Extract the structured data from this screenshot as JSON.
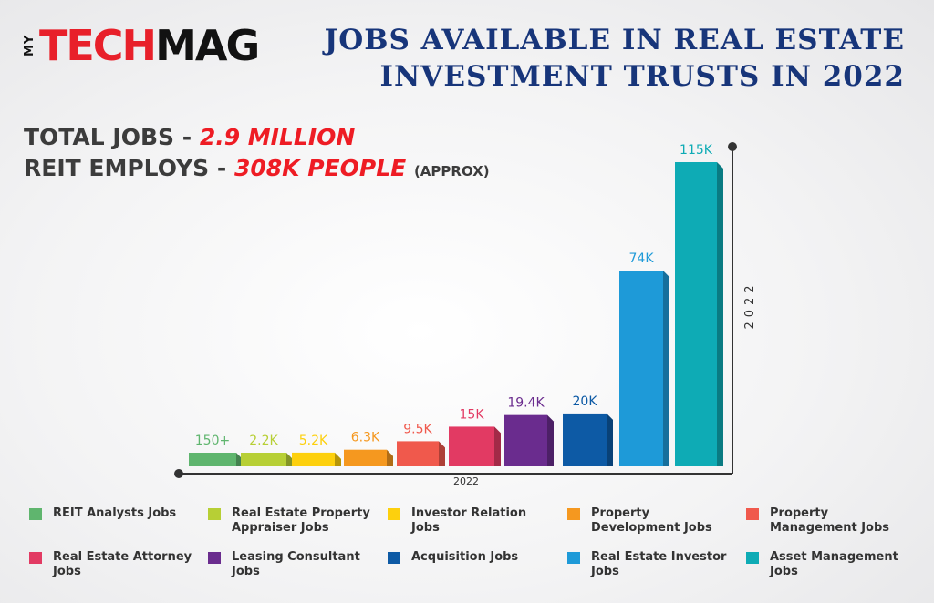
{
  "logo": {
    "my": "MY",
    "tech": "TECH",
    "mag": "MAG"
  },
  "title": "JOBS AVAILABLE IN REAL ESTATE INVESTMENT TRUSTS IN 2022",
  "stats": {
    "total_label": "TOTAL JOBS - ",
    "total_value": "2.9 MILLION",
    "reit_label": "REIT EMPLOYS - ",
    "reit_value": "308K PEOPLE",
    "reit_note": "(APPROX)"
  },
  "chart_data": {
    "type": "bar",
    "xlabel": "2022",
    "ylabel": "2022",
    "categories": [
      "REIT Analysts Jobs",
      "Real Estate Property Appraiser Jobs",
      "Investor Relation Jobs",
      "Property Development Jobs",
      "Property Management Jobs",
      "Real Estate Attorney Jobs",
      "Leasing Consultant Jobs",
      "Acquisition Jobs",
      "Real Estate Investor Jobs",
      "Asset Management Jobs"
    ],
    "values": [
      150,
      2200,
      5200,
      6300,
      9500,
      15000,
      19400,
      20000,
      74000,
      115000
    ],
    "data_labels": [
      "150+",
      "2.2K",
      "5.2K",
      "6.3K",
      "9.5K",
      "15K",
      "19.4K",
      "20K",
      "74K",
      "115K"
    ],
    "colors": [
      "#5fb56e",
      "#b7cf35",
      "#fdd00d",
      "#f5981f",
      "#f0594c",
      "#e23a63",
      "#6a2c8e",
      "#0d5aa5",
      "#1e9ad8",
      "#0eabb5"
    ],
    "legend_placement": "bottom"
  }
}
